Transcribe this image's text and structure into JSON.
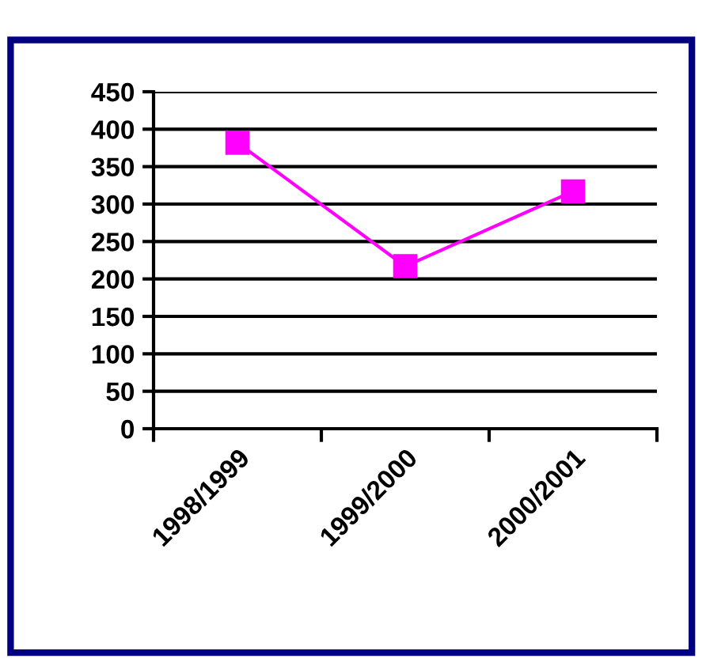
{
  "chart_data": {
    "type": "line",
    "categories": [
      "1998/1999",
      "1999/2000",
      "2000/2001"
    ],
    "series": [
      {
        "color": "#ff00ff",
        "values": [
          382,
          217,
          317
        ]
      }
    ],
    "ylim": [
      0,
      450
    ],
    "yticks": [
      0,
      50,
      100,
      150,
      200,
      250,
      300,
      350,
      400,
      450
    ],
    "grid": "y",
    "marker": "square",
    "line_style": "solid",
    "legend": false
  }
}
